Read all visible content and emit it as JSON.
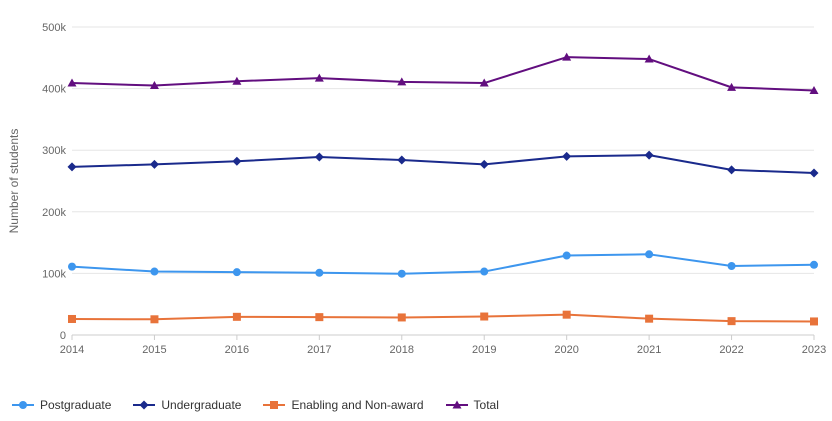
{
  "chart_data": {
    "type": "line",
    "title": "",
    "xlabel": "",
    "ylabel": "Number of students",
    "x": [
      "2014",
      "2015",
      "2016",
      "2017",
      "2018",
      "2019",
      "2020",
      "2021",
      "2022",
      "2023"
    ],
    "ylim": [
      0,
      500000
    ],
    "yticks": [
      0,
      100000,
      200000,
      300000,
      400000,
      500000
    ],
    "ytick_labels": [
      "0",
      "100k",
      "200k",
      "300k",
      "400k",
      "500k"
    ],
    "grid": true,
    "legend_position": "bottom-left",
    "series": [
      {
        "name": "Postgraduate",
        "color": "#3d96ee",
        "marker": "circle",
        "values": [
          111000,
          103000,
          102000,
          101000,
          99500,
          103000,
          129000,
          131000,
          112000,
          114000
        ]
      },
      {
        "name": "Undergraduate",
        "color": "#1a2a8c",
        "marker": "diamond",
        "values": [
          273000,
          277000,
          282000,
          289000,
          284000,
          277000,
          290000,
          292000,
          268000,
          263000
        ]
      },
      {
        "name": "Enabling and Non-award",
        "color": "#e8733a",
        "marker": "square",
        "values": [
          26000,
          25500,
          29500,
          29000,
          28500,
          30000,
          33000,
          26500,
          22500,
          22000
        ]
      },
      {
        "name": "Total",
        "color": "#620e7f",
        "marker": "triangle",
        "values": [
          409000,
          405000,
          412000,
          417000,
          411000,
          409000,
          451000,
          448000,
          402000,
          397000
        ]
      }
    ]
  }
}
